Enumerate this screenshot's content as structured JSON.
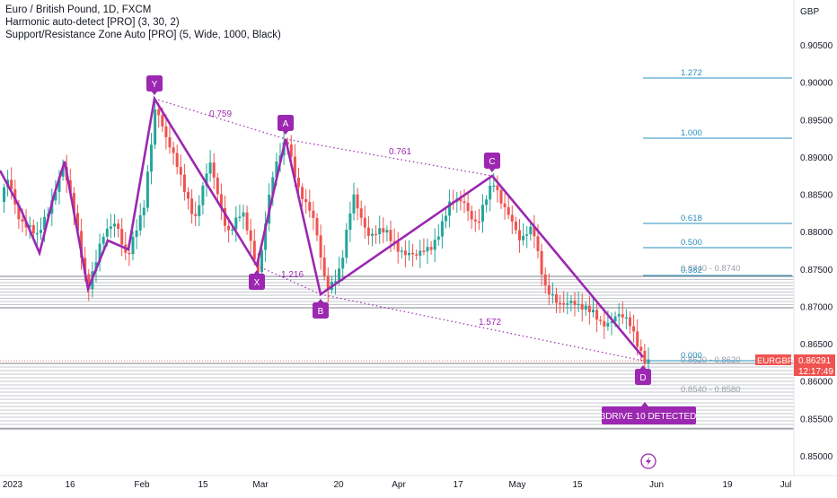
{
  "legend": {
    "symbol": "Euro / British Pound, 1D, FXCM",
    "indicator1": "Harmonic auto-detect [PRO] (3, 30, 2)",
    "indicator2": "Support/Resistance Zone Auto [PRO] (5, Wide, 1000, Black)"
  },
  "price_axis": {
    "currency": "GBP",
    "ticks": [
      "0.90500",
      "0.90000",
      "0.89500",
      "0.89000",
      "0.88500",
      "0.88000",
      "0.87500",
      "0.87000",
      "0.86500",
      "0.86000",
      "0.85500",
      "0.85000"
    ],
    "tick_values": [
      0.905,
      0.9,
      0.895,
      0.89,
      0.885,
      0.88,
      0.875,
      0.87,
      0.865,
      0.86,
      0.855,
      0.85
    ],
    "current_symbol": "EURGBP",
    "current_price": "0.86291",
    "countdown": "12:17:49"
  },
  "time_axis": {
    "labels": [
      "2023",
      "16",
      "Feb",
      "15",
      "Mar",
      "20",
      "Apr",
      "17",
      "May",
      "15",
      "Jun",
      "19",
      "Jul"
    ]
  },
  "pattern": {
    "points": [
      {
        "label": "X",
        "price": 0.8755
      },
      {
        "label": "Y",
        "price": 0.898
      },
      {
        "label": "A",
        "price": 0.8925
      },
      {
        "label": "B",
        "price": 0.8718
      },
      {
        "label": "C",
        "price": 0.8877
      },
      {
        "label": "D",
        "price": 0.8629
      }
    ],
    "ratios": [
      "0.759",
      "0.761",
      "1.216",
      "1.572"
    ],
    "badge": "3DRIVE 10 DETECTED"
  },
  "fib_levels": [
    "1.272",
    "1.000",
    "0.618",
    "0.500",
    "0.382",
    "0.000"
  ],
  "fib_prices": [
    0.901,
    0.8927,
    0.8813,
    0.8778,
    0.874,
    0.8629
  ],
  "zones": [
    {
      "label": "0.8740 - 0.8740",
      "price": 0.874
    },
    {
      "label": "0.8620 - 0.8620",
      "price": 0.862
    },
    {
      "label": "0.8540 - 0.8580",
      "price": 0.858
    }
  ],
  "colors": {
    "up": "#26a69a",
    "down": "#ef5350",
    "pattern": "#9c27b0",
    "fib": "#2a8fbf",
    "zone": "#b2b5be"
  },
  "icons": [
    "lightning-icon"
  ]
}
